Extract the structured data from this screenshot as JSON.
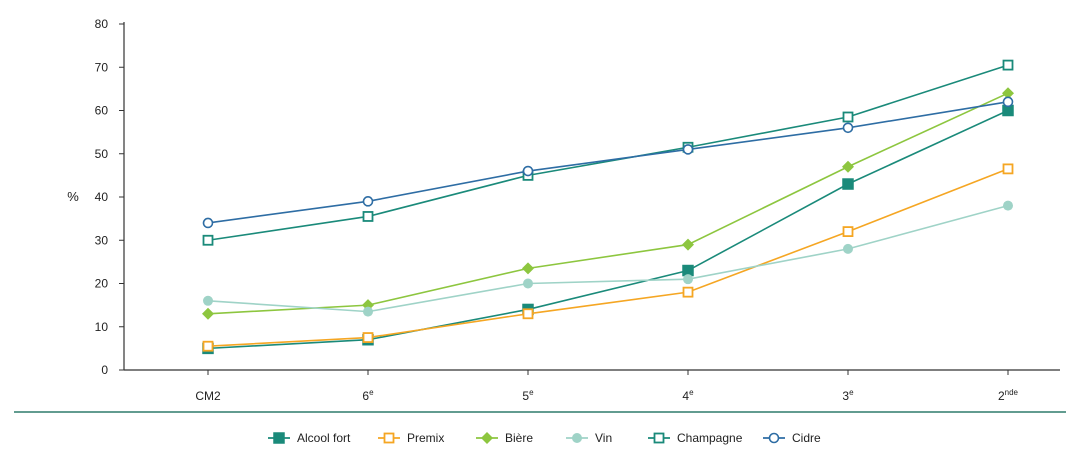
{
  "chart_data": {
    "type": "line",
    "ylabel": "%",
    "xlabel": "",
    "title": "",
    "ylim": [
      0,
      80
    ],
    "yticks": [
      0,
      10,
      20,
      30,
      40,
      50,
      60,
      70,
      80
    ],
    "grid": false,
    "legend_position": "bottom",
    "categories": [
      {
        "base": "CM2",
        "sup": ""
      },
      {
        "base": "6",
        "sup": "e"
      },
      {
        "base": "5",
        "sup": "e"
      },
      {
        "base": "4",
        "sup": "e"
      },
      {
        "base": "3",
        "sup": "e"
      },
      {
        "base": "2",
        "sup": "nde"
      }
    ],
    "series": [
      {
        "name": "Alcool fort",
        "color": "#1a8a7a",
        "marker": "square-filled",
        "values": [
          5,
          7,
          14,
          23,
          43,
          60
        ]
      },
      {
        "name": "Premix",
        "color": "#f5a623",
        "marker": "square-open",
        "values": [
          5.5,
          7.5,
          13,
          18,
          32,
          46.5
        ]
      },
      {
        "name": "Bière",
        "color": "#8dc63f",
        "marker": "diamond-filled",
        "values": [
          13,
          15,
          23.5,
          29,
          47,
          64
        ]
      },
      {
        "name": "Vin",
        "color": "#9fd3c7",
        "marker": "circle-filled",
        "values": [
          16,
          13.5,
          20,
          21,
          28,
          38
        ]
      },
      {
        "name": "Champagne",
        "color": "#1a8a7a",
        "marker": "square-open",
        "values": [
          30,
          35.5,
          45,
          51.5,
          58.5,
          70.5
        ]
      },
      {
        "name": "Cidre",
        "color": "#2e6da4",
        "marker": "circle-open",
        "values": [
          34,
          39,
          46,
          51,
          56,
          62
        ]
      }
    ]
  }
}
